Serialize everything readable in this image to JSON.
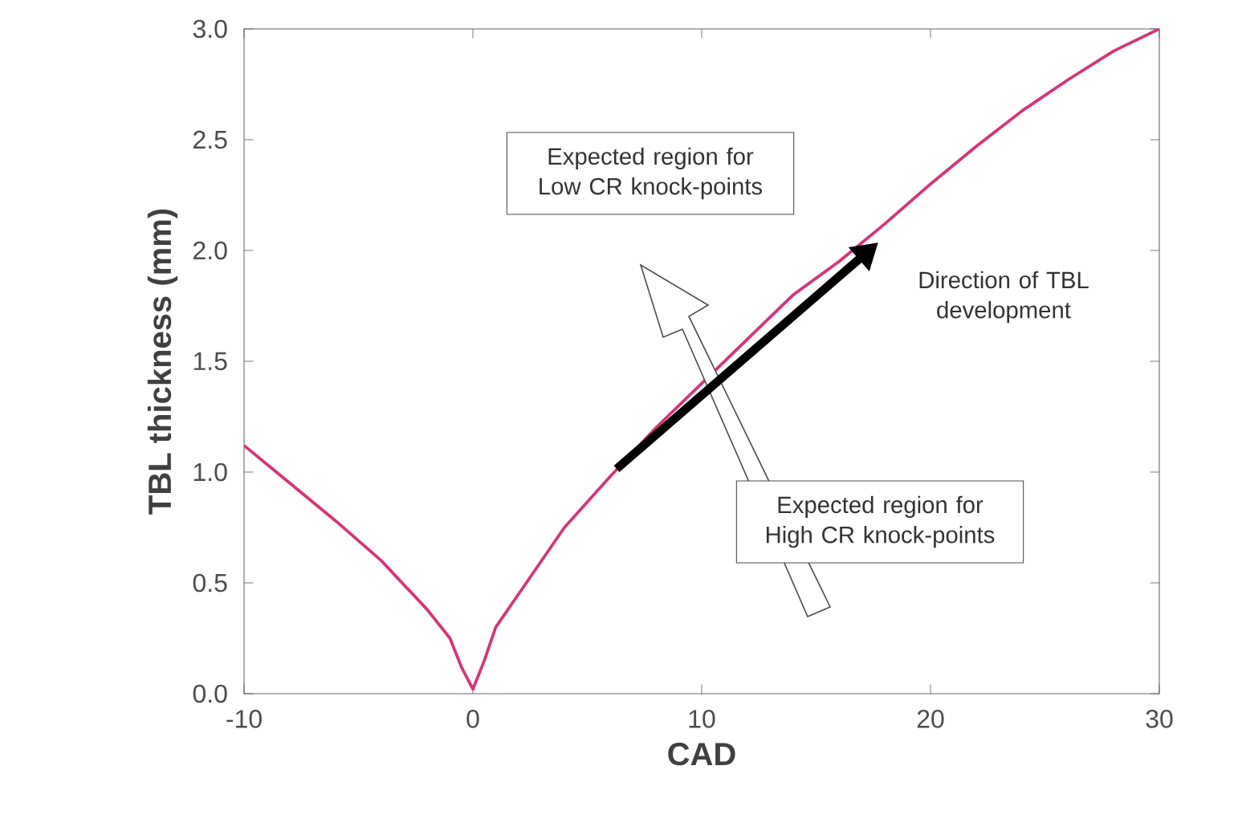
{
  "chart_data": {
    "type": "line",
    "xlabel": "CAD",
    "ylabel": "TBL thickness (mm)",
    "x": [
      -10,
      -8,
      -6,
      -4,
      -2,
      -1,
      -0.5,
      0,
      0.5,
      1,
      2,
      4,
      6,
      8,
      10,
      12,
      14,
      16,
      18,
      20,
      22,
      24,
      26,
      28,
      30
    ],
    "values": [
      1.12,
      0.95,
      0.78,
      0.6,
      0.38,
      0.25,
      0.12,
      0.02,
      0.15,
      0.3,
      0.45,
      0.75,
      0.98,
      1.2,
      1.4,
      1.6,
      1.8,
      1.95,
      2.12,
      2.3,
      2.47,
      2.63,
      2.77,
      2.9,
      3.0
    ],
    "color": "#d6337a",
    "xlim": [
      -10,
      30
    ],
    "ylim": [
      0,
      3
    ],
    "xticks": [
      -10,
      0,
      10,
      20,
      30
    ],
    "yticks": [
      {
        "value": 0,
        "label": "0.0"
      },
      {
        "value": 0.5,
        "label": "0.5"
      },
      {
        "value": 1,
        "label": "1.0"
      },
      {
        "value": 1.5,
        "label": "1.5"
      },
      {
        "value": 2,
        "label": "2.0"
      },
      {
        "value": 2.5,
        "label": "2.5"
      },
      {
        "value": 3,
        "label": "3.0"
      }
    ],
    "grid": false,
    "marker": "none",
    "line_style": "solid",
    "annotations": [
      "Expected region for Low CR knock-points",
      "Direction of TBL development",
      "Expected region for High CR knock-points"
    ]
  }
}
